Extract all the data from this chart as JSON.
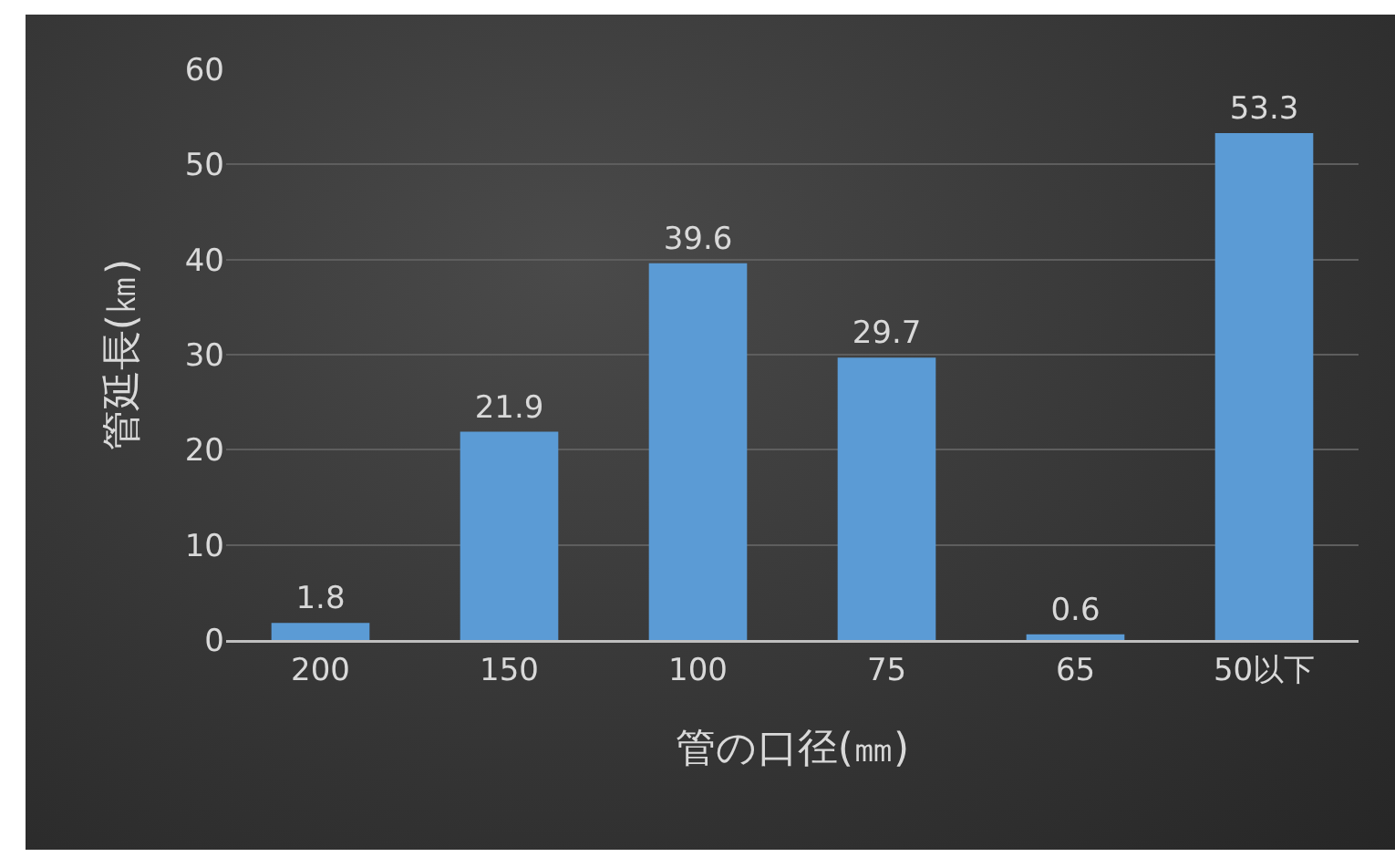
{
  "chart_data": {
    "type": "bar",
    "xlabel": "管の口径(㎜)",
    "ylabel": "管延長(㎞)",
    "categories": [
      "200",
      "150",
      "100",
      "75",
      "65",
      "50以下"
    ],
    "values": [
      1.8,
      21.9,
      39.6,
      29.7,
      0.6,
      53.3
    ],
    "color": "#5b9bd5",
    "ylim": [
      0,
      60
    ],
    "yticks": [
      0,
      10,
      20,
      30,
      40,
      50,
      60
    ],
    "grid": "y",
    "data_labels": true
  }
}
